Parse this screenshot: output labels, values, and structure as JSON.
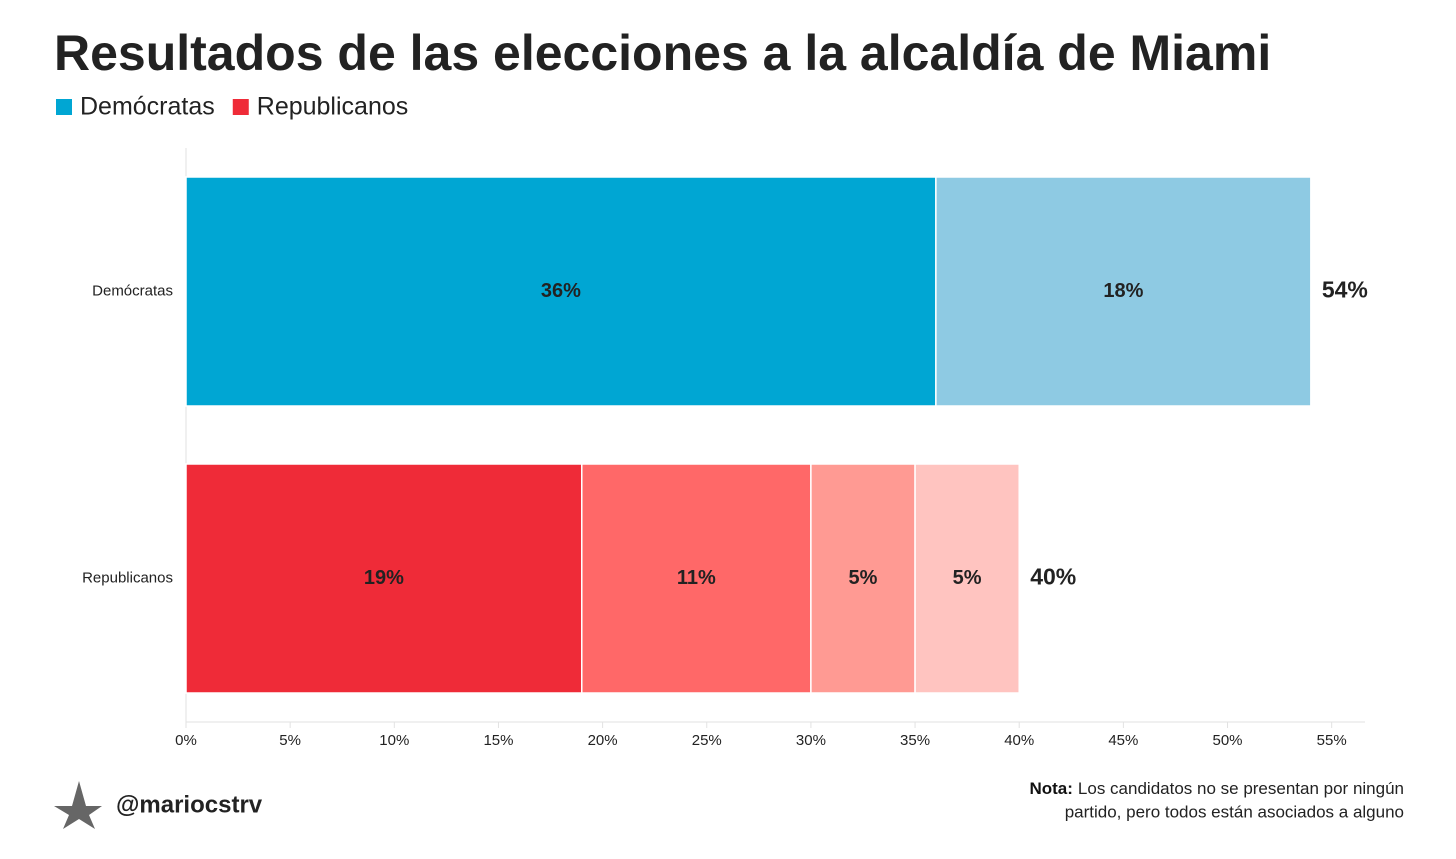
{
  "chart_data": {
    "type": "stacked-bar-horizontal",
    "title": "Resultados de las elecciones a la alcaldía de Miami",
    "legend": [
      {
        "label": "Demócratas",
        "color": "#00a6d3"
      },
      {
        "label": "Republicanos",
        "color": "#ef2b38"
      }
    ],
    "categories": [
      "Demócratas",
      "Republicanos"
    ],
    "bars": [
      {
        "segments": [
          {
            "value": 36,
            "value_label": "36%",
            "color": "#00a6d3",
            "text_color": "#ffffff"
          },
          {
            "value": 18,
            "value_label": "18%",
            "color": "#8ecae3",
            "text_color": "#111111"
          }
        ],
        "total": 54,
        "total_label": "54%"
      },
      {
        "segments": [
          {
            "value": 19,
            "value_label": "19%",
            "color": "#ef2b38",
            "text_color": "#ffffff"
          },
          {
            "value": 11,
            "value_label": "11%",
            "color": "#ff6868",
            "text_color": "#ffffff"
          },
          {
            "value": 5,
            "value_label": "5%",
            "color": "#ff9a93",
            "text_color": "#111111"
          },
          {
            "value": 5,
            "value_label": "5%",
            "color": "#ffc4c0",
            "text_color": "#111111"
          }
        ],
        "total": 40,
        "total_label": "40%"
      }
    ],
    "xlim": [
      0,
      56.6
    ],
    "xticks": [
      {
        "value": 0,
        "label": "0%"
      },
      {
        "value": 5,
        "label": "5%"
      },
      {
        "value": 10,
        "label": "10%"
      },
      {
        "value": 15,
        "label": "15%"
      },
      {
        "value": 20,
        "label": "20%"
      },
      {
        "value": 25,
        "label": "25%"
      },
      {
        "value": 30,
        "label": "30%"
      },
      {
        "value": 35,
        "label": "35%"
      },
      {
        "value": 40,
        "label": "40%"
      },
      {
        "value": 45,
        "label": "45%"
      },
      {
        "value": 50,
        "label": "50%"
      },
      {
        "value": 55,
        "label": "55%"
      }
    ]
  },
  "footer": {
    "handle": "@mariocstrv",
    "note_label": "Nota:",
    "note_line1": "Los candidatos no se presentan por ningún",
    "note_line2": "partido, pero todos están asociados a alguno"
  }
}
